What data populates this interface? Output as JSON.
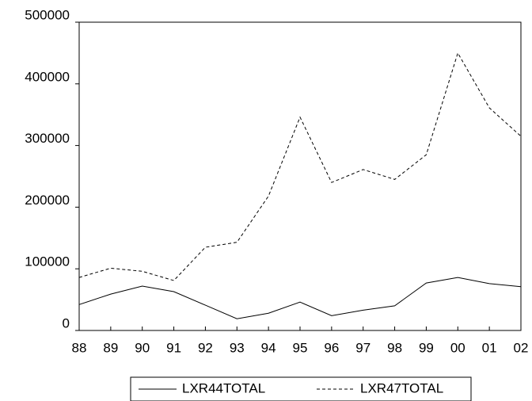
{
  "chart_data": {
    "type": "line",
    "categories": [
      "88",
      "89",
      "90",
      "91",
      "92",
      "93",
      "94",
      "95",
      "96",
      "97",
      "98",
      "99",
      "00",
      "01",
      "02"
    ],
    "series": [
      {
        "name": "LXR44TOTAL",
        "color": "#000000",
        "dash": "solid",
        "values": [
          42000,
          59000,
          72000,
          63000,
          41000,
          19000,
          28000,
          46000,
          24000,
          33000,
          40000,
          77000,
          86000,
          76000,
          71000
        ]
      },
      {
        "name": "LXR47TOTAL",
        "color": "#000000",
        "dash": "dashed",
        "values": [
          86000,
          101000,
          96000,
          81000,
          135000,
          143000,
          218000,
          346000,
          240000,
          261000,
          245000,
          285000,
          450000,
          361000,
          315000
        ]
      }
    ],
    "ylim": [
      0,
      500000
    ],
    "yticks": [
      0,
      100000,
      200000,
      300000,
      400000,
      500000
    ],
    "grid": false
  }
}
